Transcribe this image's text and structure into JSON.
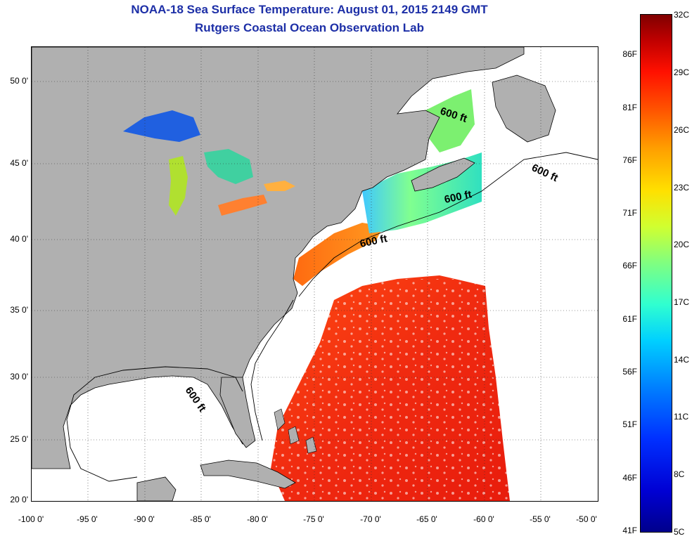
{
  "title": {
    "line1": "NOAA-18 Sea Surface Temperature:  August 01, 2015 2149 GMT",
    "line2": "Rutgers Coastal Ocean Observation Lab"
  },
  "axes": {
    "latitude_ticks": [
      "50 0'",
      "45 0'",
      "40 0'",
      "35 0'",
      "30 0'",
      "25 0'",
      "20 0'"
    ],
    "longitude_ticks": [
      "-100 0'",
      "-95 0'",
      "-90 0'",
      "-85 0'",
      "-80 0'",
      "-75 0'",
      "-70 0'",
      "-65 0'",
      "-60 0'",
      "-55 0'",
      "-50 0'"
    ]
  },
  "contour_labels": [
    "600 ft",
    "600 ft",
    "600 ft",
    "600 ft",
    "600 ft"
  ],
  "colorbar": {
    "fahrenheit": [
      "86F",
      "81F",
      "76F",
      "71F",
      "66F",
      "61F",
      "56F",
      "51F",
      "46F",
      "41F"
    ],
    "celsius": [
      "32C",
      "29C",
      "26C",
      "23C",
      "20C",
      "17C",
      "14C",
      "11C",
      "8C",
      "5C"
    ],
    "range_c": [
      5,
      32
    ],
    "range_f": [
      41,
      90
    ]
  },
  "colors": {
    "title": "#1d2fa7",
    "land": "#b0b0b0",
    "no_data": "#ffffff",
    "warm_ocean": "#ff3a10",
    "coastline": "#000000"
  }
}
